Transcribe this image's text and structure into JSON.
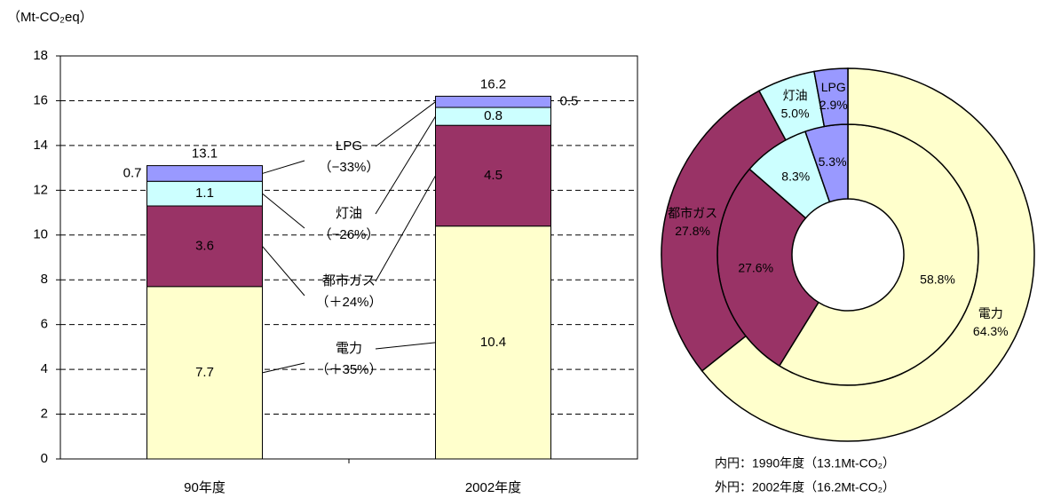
{
  "chart_data": [
    {
      "type": "stacked-bar",
      "unit_label": "（Mt-CO₂eq）",
      "categories": [
        "90年度",
        "2002年度"
      ],
      "series": [
        {
          "name": "電力",
          "change_label": "（＋35%）",
          "color": "#ffffcc",
          "values": [
            7.7,
            10.4
          ]
        },
        {
          "name": "都市ガス",
          "change_label": "（＋24%）",
          "color": "#993366",
          "values": [
            3.6,
            4.5
          ]
        },
        {
          "name": "灯油",
          "change_label": "（−26%）",
          "color": "#ccffff",
          "values": [
            1.1,
            0.8
          ]
        },
        {
          "name": "LPG",
          "change_label": "（−33%）",
          "color": "#9999ff",
          "values": [
            0.7,
            0.5
          ]
        }
      ],
      "totals": [
        13.1,
        16.2
      ],
      "ylim": [
        0,
        18
      ],
      "yticks": [
        0,
        2,
        4,
        6,
        8,
        10,
        12,
        14,
        16,
        18
      ],
      "grid": true
    },
    {
      "type": "donut",
      "categories": [
        "電力",
        "都市ガス",
        "灯油",
        "LPG"
      ],
      "colors": [
        "#ffffcc",
        "#993366",
        "#ccffff",
        "#9999ff"
      ],
      "rings": [
        {
          "label": "内円：1990年度（13.1Mt-CO₂）",
          "values": [
            58.8,
            27.6,
            8.3,
            5.3
          ],
          "value_labels": [
            "58.8%",
            "27.6%",
            "8.3%",
            "5.3%"
          ]
        },
        {
          "label": "外円：2002年度（16.2Mt-CO₂）",
          "values": [
            64.3,
            27.8,
            5.0,
            2.9
          ],
          "value_labels": [
            "64.3%",
            "27.8%",
            "5.0%",
            "2.9%"
          ]
        }
      ]
    }
  ]
}
